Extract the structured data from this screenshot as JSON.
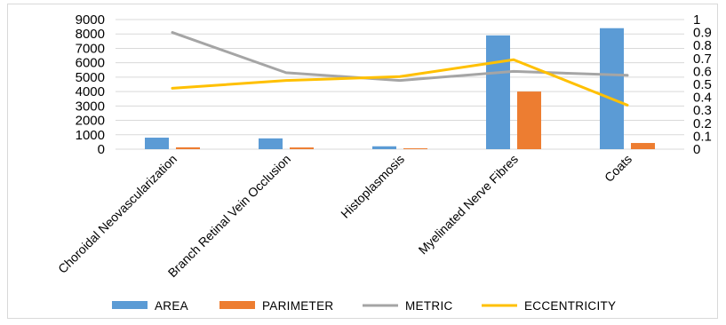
{
  "chart_data": {
    "type": "bar",
    "categories": [
      "Choroidal Neovascularization",
      "Branch Retinal Vein Occlusion",
      "Histoplasmosis",
      "Myelinated Nerve Fibres",
      "Coats"
    ],
    "series": [
      {
        "name": "AREA",
        "type": "bar",
        "axis": "left",
        "color": "#5b9bd5",
        "values": [
          800,
          750,
          200,
          7900,
          8400
        ]
      },
      {
        "name": "PARIMETER",
        "type": "bar",
        "axis": "left",
        "color": "#ed7d31",
        "values": [
          130,
          120,
          60,
          4000,
          430
        ]
      },
      {
        "name": "METRIC",
        "type": "line",
        "axis": "right",
        "color": "#a5a5a5",
        "values": [
          0.9,
          0.59,
          0.53,
          0.6,
          0.57
        ]
      },
      {
        "name": "ECCENTRICITY",
        "type": "line",
        "axis": "right",
        "color": "#ffc000",
        "values": [
          0.47,
          0.53,
          0.56,
          0.69,
          0.34
        ]
      }
    ],
    "y_left": {
      "ylim": [
        0,
        9000
      ],
      "ticks": [
        "9000",
        "8000",
        "7000",
        "6000",
        "5000",
        "4000",
        "3000",
        "2000",
        "1000",
        "0"
      ]
    },
    "y_right": {
      "ylim": [
        0,
        1
      ],
      "ticks": [
        "1",
        "0.9",
        "0.8",
        "0.7",
        "0.6",
        "0.5",
        "0.4",
        "0.3",
        "0.2",
        "0.1",
        "0"
      ]
    },
    "grid": true,
    "legend_position": "bottom",
    "title": "",
    "xlabel": "",
    "ylabel": ""
  }
}
